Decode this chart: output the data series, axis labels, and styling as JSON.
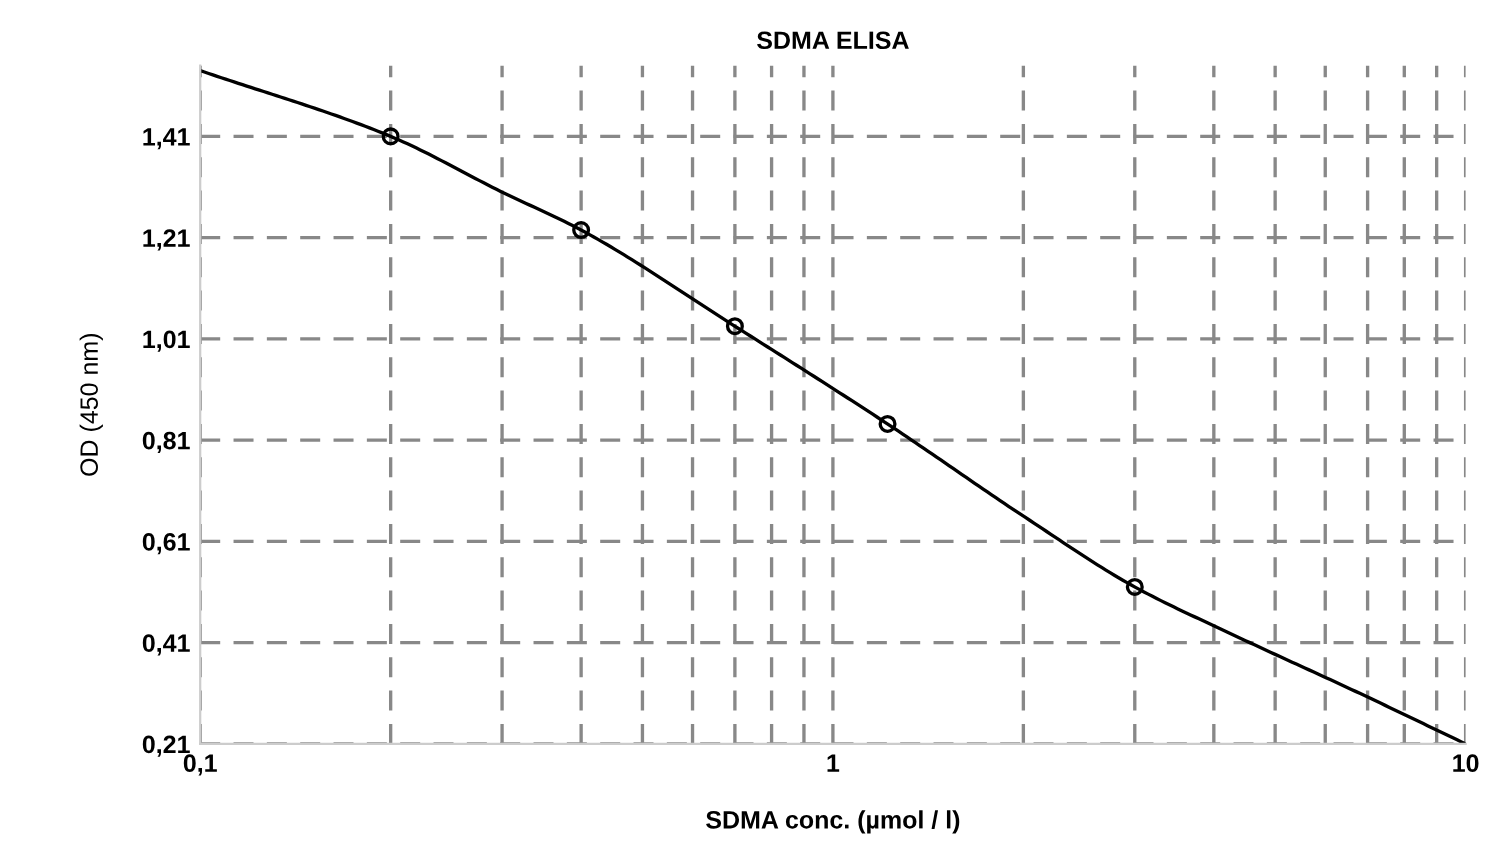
{
  "chart_data": {
    "type": "scatter",
    "title": "SDMA ELISA",
    "xlabel": "SDMA conc. (µmol / l)",
    "ylabel": "OD (450 nm)",
    "log": "x",
    "grid": true,
    "marker": "circle",
    "xlim": [
      0.1,
      10
    ],
    "xticks": [
      {
        "value": 0.1,
        "label": "0,1"
      },
      1,
      10
    ],
    "ylim": [
      0.21,
      1.55
    ],
    "yticks": [
      {
        "value": 0.21,
        "label": "0,21"
      },
      {
        "value": 0.41,
        "label": "0,41"
      },
      {
        "value": 0.61,
        "label": "0,61"
      },
      {
        "value": 0.81,
        "label": "0,81"
      },
      {
        "value": 1.01,
        "label": "1,01"
      },
      {
        "value": 1.21,
        "label": "1,21"
      },
      {
        "value": 1.41,
        "label": "1,41"
      }
    ],
    "series": [
      {
        "color": "#000000",
        "x": [
          0.2,
          0.4,
          0.7,
          1.22,
          3.0
        ],
        "values": [
          1.41,
          1.225,
          1.035,
          0.842,
          0.52
        ]
      },
      {
        "type": "line",
        "color": "#000000",
        "marker": "none",
        "line_style": "solid",
        "x": [
          0.1,
          0.2,
          0.3,
          0.4,
          0.7,
          1.22,
          2.0,
          3.0,
          4.3,
          6.8,
          10
        ],
        "values": [
          1.54,
          1.41,
          1.3,
          1.225,
          1.035,
          0.842,
          0.66,
          0.52,
          0.425,
          0.31,
          0.21
        ]
      }
    ]
  }
}
